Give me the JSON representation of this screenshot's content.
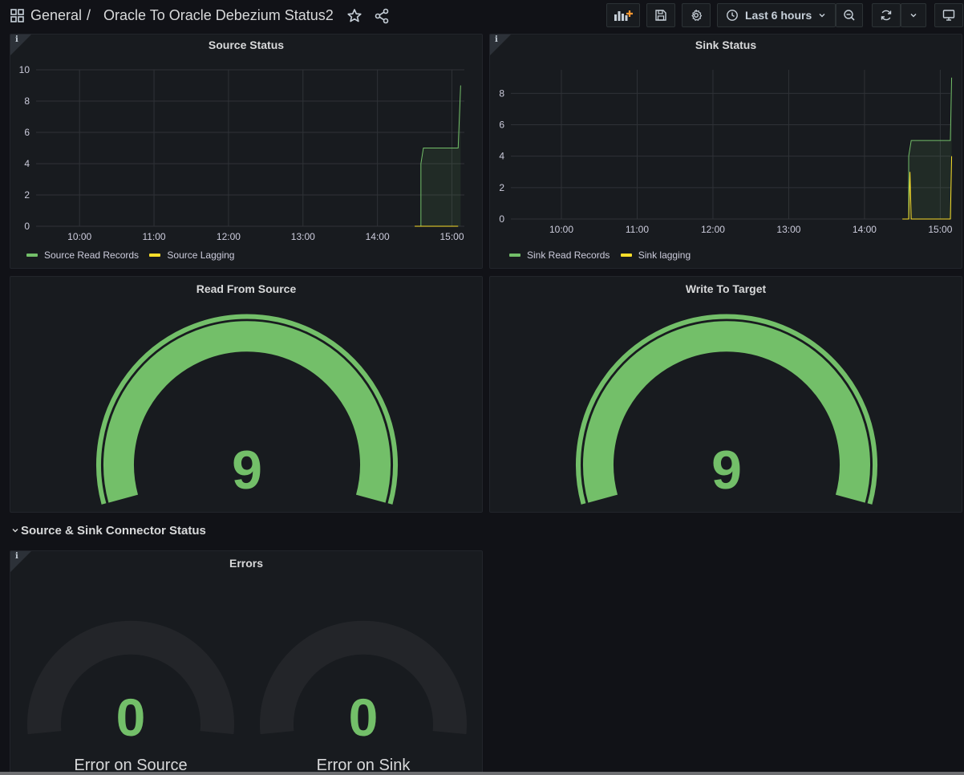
{
  "topbar": {
    "folder": "General",
    "separator": "/",
    "dashboard_title": "Oracle To Oracle Debezium Status2",
    "time_range": "Last 6 hours",
    "icons": [
      "apps-icon",
      "star-icon",
      "share-icon",
      "add-panel-icon",
      "save-icon",
      "gear-icon",
      "clock-icon",
      "chevron-down-icon",
      "zoom-out-icon",
      "refresh-icon",
      "chevron-down-icon",
      "tv-icon"
    ]
  },
  "colors": {
    "green": "#73bf69",
    "yellow": "#fade2a",
    "bg": "#111217",
    "panel": "#181b1f",
    "grid": "#2f3237",
    "empty_gauge": "#232529"
  },
  "panels": {
    "source_status": {
      "title": "Source Status",
      "legend": [
        "Source Read Records",
        "Source Lagging"
      ]
    },
    "sink_status": {
      "title": "Sink Status",
      "legend": [
        "Sink Read Records",
        "Sink lagging"
      ]
    },
    "read_from_source": {
      "title": "Read From Source",
      "value": "9"
    },
    "write_to_target": {
      "title": "Write To Target",
      "value": "9"
    },
    "row": {
      "title": "Source & Sink Connector Status"
    },
    "errors": {
      "title": "Errors",
      "gauges": [
        {
          "label": "Error on Source",
          "value": "0"
        },
        {
          "label": "Error on Sink",
          "value": "0"
        }
      ]
    }
  },
  "chart_data": [
    {
      "type": "line",
      "title": "Source Status",
      "x_ticks": [
        "10:00",
        "11:00",
        "12:00",
        "13:00",
        "14:00",
        "15:00"
      ],
      "y_ticks": [
        "0",
        "2",
        "4",
        "6",
        "8",
        "10"
      ],
      "ylim": [
        0,
        10
      ],
      "xlim": [
        "09:25",
        "15:10"
      ],
      "grid": true,
      "legend_position": "bottom-left",
      "series": [
        {
          "name": "Source Read Records",
          "color": "#73bf69",
          "fill": true,
          "points": [
            [
              "14:35",
              0
            ],
            [
              "14:35",
              4
            ],
            [
              "14:37",
              5
            ],
            [
              "15:05",
              5
            ],
            [
              "15:05",
              5
            ],
            [
              "15:07",
              9
            ]
          ]
        },
        {
          "name": "Source Lagging",
          "color": "#fade2a",
          "fill": false,
          "points": [
            [
              "14:30",
              0
            ],
            [
              "14:33",
              0
            ],
            [
              "14:35",
              0
            ],
            [
              "15:05",
              0
            ]
          ]
        }
      ]
    },
    {
      "type": "line",
      "title": "Sink Status",
      "x_ticks": [
        "10:00",
        "11:00",
        "12:00",
        "13:00",
        "14:00",
        "15:00"
      ],
      "y_ticks": [
        "0",
        "2",
        "4",
        "6",
        "8"
      ],
      "ylim": [
        0,
        9.5
      ],
      "xlim": [
        "09:20",
        "15:08"
      ],
      "grid": true,
      "legend_position": "bottom-left",
      "series": [
        {
          "name": "Sink Read Records",
          "color": "#73bf69",
          "fill": true,
          "points": [
            [
              "14:35",
              0
            ],
            [
              "14:35",
              4
            ],
            [
              "14:37",
              5
            ],
            [
              "15:08",
              5
            ],
            [
              "15:08",
              5
            ],
            [
              "15:09",
              9
            ]
          ]
        },
        {
          "name": "Sink lagging",
          "color": "#fade2a",
          "fill": false,
          "points": [
            [
              "14:30",
              0
            ],
            [
              "14:35",
              0
            ],
            [
              "14:36",
              3
            ],
            [
              "14:37",
              0
            ],
            [
              "15:08",
              0
            ],
            [
              "15:09",
              4
            ]
          ]
        }
      ]
    }
  ]
}
